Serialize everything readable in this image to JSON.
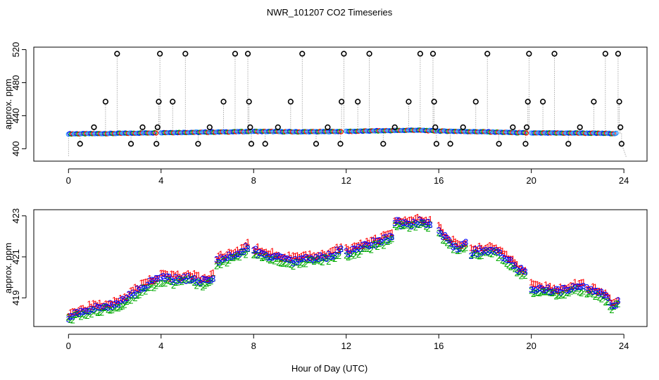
{
  "figure": {
    "title": "NWR_101207  CO2 Timeseries",
    "xlabel": "Hour of Day (UTC)"
  },
  "colors": {
    "axis": "#000000",
    "guide_line": "#999999",
    "outlier_marker": "#000000",
    "level1": "#ff0000",
    "level2": "#00aa00",
    "level3": "#0000ff",
    "series_fill": "#1e90ff"
  },
  "chart_data": [
    {
      "type": "scatter",
      "name": "top-panel",
      "ylabel": "approx. ppm",
      "xlim": [
        -1.5,
        25
      ],
      "ylim": [
        385,
        523
      ],
      "xticks": [
        0,
        4,
        8,
        12,
        16,
        20,
        24
      ],
      "yticks": [
        400,
        440,
        480,
        520
      ],
      "marker": "open-circle",
      "baseline_profile_hours": [
        0,
        2,
        4,
        6,
        8,
        10,
        12,
        14,
        15,
        16,
        18,
        20,
        22,
        23.5
      ],
      "baseline_profile_ppm": [
        418,
        418.5,
        419.5,
        420,
        421,
        420.5,
        421,
        422,
        422.5,
        421.5,
        420.5,
        419,
        419,
        418.5
      ],
      "baseline_segments": [
        {
          "start": 0.0,
          "end": 3.8
        },
        {
          "start": 4.0,
          "end": 7.9
        },
        {
          "start": 8.0,
          "end": 11.8
        },
        {
          "start": 12.0,
          "end": 15.9
        },
        {
          "start": 16.0,
          "end": 19.8
        },
        {
          "start": 20.0,
          "end": 23.7
        }
      ],
      "spikes": [
        {
          "hour": 0.5,
          "ppm": 406
        },
        {
          "hour": 1.1,
          "ppm": 426
        },
        {
          "hour": 1.6,
          "ppm": 457
        },
        {
          "hour": 2.1,
          "ppm": 515
        },
        {
          "hour": 2.7,
          "ppm": 406
        },
        {
          "hour": 3.2,
          "ppm": 426
        },
        {
          "hour": 3.8,
          "ppm": 406
        },
        {
          "hour": 3.85,
          "ppm": 426
        },
        {
          "hour": 3.9,
          "ppm": 457
        },
        {
          "hour": 3.95,
          "ppm": 515
        },
        {
          "hour": 4.5,
          "ppm": 457
        },
        {
          "hour": 5.05,
          "ppm": 515
        },
        {
          "hour": 5.6,
          "ppm": 406
        },
        {
          "hour": 6.1,
          "ppm": 426
        },
        {
          "hour": 6.7,
          "ppm": 457
        },
        {
          "hour": 7.2,
          "ppm": 515
        },
        {
          "hour": 7.75,
          "ppm": 515
        },
        {
          "hour": 7.8,
          "ppm": 457
        },
        {
          "hour": 7.85,
          "ppm": 426
        },
        {
          "hour": 7.9,
          "ppm": 406
        },
        {
          "hour": 8.5,
          "ppm": 406
        },
        {
          "hour": 9.05,
          "ppm": 426
        },
        {
          "hour": 9.6,
          "ppm": 457
        },
        {
          "hour": 10.1,
          "ppm": 515
        },
        {
          "hour": 10.7,
          "ppm": 406
        },
        {
          "hour": 11.2,
          "ppm": 426
        },
        {
          "hour": 11.75,
          "ppm": 406
        },
        {
          "hour": 11.8,
          "ppm": 457
        },
        {
          "hour": 11.9,
          "ppm": 515
        },
        {
          "hour": 12.5,
          "ppm": 457
        },
        {
          "hour": 13.0,
          "ppm": 515
        },
        {
          "hour": 13.6,
          "ppm": 406
        },
        {
          "hour": 14.1,
          "ppm": 426
        },
        {
          "hour": 14.7,
          "ppm": 457
        },
        {
          "hour": 15.2,
          "ppm": 515
        },
        {
          "hour": 15.75,
          "ppm": 515
        },
        {
          "hour": 15.8,
          "ppm": 457
        },
        {
          "hour": 15.85,
          "ppm": 426
        },
        {
          "hour": 15.9,
          "ppm": 406
        },
        {
          "hour": 16.5,
          "ppm": 406
        },
        {
          "hour": 17.05,
          "ppm": 426
        },
        {
          "hour": 17.6,
          "ppm": 457
        },
        {
          "hour": 18.1,
          "ppm": 515
        },
        {
          "hour": 18.6,
          "ppm": 406
        },
        {
          "hour": 19.2,
          "ppm": 426
        },
        {
          "hour": 19.75,
          "ppm": 406
        },
        {
          "hour": 19.8,
          "ppm": 426
        },
        {
          "hour": 19.85,
          "ppm": 457
        },
        {
          "hour": 19.9,
          "ppm": 515
        },
        {
          "hour": 20.5,
          "ppm": 457
        },
        {
          "hour": 21.0,
          "ppm": 515
        },
        {
          "hour": 21.6,
          "ppm": 406
        },
        {
          "hour": 22.1,
          "ppm": 426
        },
        {
          "hour": 22.7,
          "ppm": 457
        },
        {
          "hour": 23.2,
          "ppm": 515
        },
        {
          "hour": 23.75,
          "ppm": 515
        },
        {
          "hour": 23.8,
          "ppm": 457
        },
        {
          "hour": 23.85,
          "ppm": 426
        },
        {
          "hour": 23.9,
          "ppm": 406
        }
      ]
    },
    {
      "type": "scatter",
      "name": "bottom-panel",
      "ylabel": "approx. ppm",
      "xlim": [
        -1.5,
        25
      ],
      "ylim": [
        417.6,
        423.3
      ],
      "xticks": [
        0,
        4,
        8,
        12,
        16,
        20,
        24
      ],
      "yticks": [
        419,
        421,
        423
      ],
      "marker": "level-digit",
      "series": [
        {
          "name": "1",
          "color": "#ff0000",
          "offset": 0.15
        },
        {
          "name": "2",
          "color": "#00aa00",
          "offset": -0.15
        },
        {
          "name": "3",
          "color": "#0000ff",
          "offset": 0.0
        }
      ],
      "segments": [
        {
          "x": [
            0,
            0.8,
            1.6,
            2.2,
            2.8,
            3.3,
            3.9
          ],
          "y": [
            418.1,
            418.4,
            418.6,
            418.8,
            419.2,
            419.6,
            419.9
          ]
        },
        {
          "x": [
            4.0,
            4.6,
            5.2,
            5.8,
            6.3
          ],
          "y": [
            420.0,
            419.9,
            420.0,
            419.8,
            420.0
          ]
        },
        {
          "x": [
            6.4,
            6.9,
            7.4,
            7.8
          ],
          "y": [
            420.8,
            421.0,
            421.2,
            421.5
          ]
        },
        {
          "x": [
            8.0,
            8.6,
            9.2,
            9.8,
            10.4,
            11.0,
            11.5,
            11.8
          ],
          "y": [
            421.3,
            421.1,
            420.9,
            420.8,
            420.9,
            421.0,
            421.1,
            421.5
          ]
        },
        {
          "x": [
            12.0,
            12.5,
            13.0,
            13.5,
            14.0
          ],
          "y": [
            421.2,
            421.4,
            421.6,
            421.8,
            422.0
          ]
        },
        {
          "x": [
            14.1,
            14.6,
            15.2,
            15.7
          ],
          "y": [
            422.7,
            422.6,
            422.7,
            422.6
          ]
        },
        {
          "x": [
            16.0,
            16.4,
            16.8,
            17.2
          ],
          "y": [
            422.3,
            421.8,
            421.5,
            421.6
          ]
        },
        {
          "x": [
            17.4,
            17.8,
            18.3,
            18.8,
            19.4,
            19.8
          ],
          "y": [
            421.2,
            421.3,
            421.4,
            421.0,
            420.5,
            420.1
          ]
        },
        {
          "x": [
            20.0,
            20.6,
            21.2,
            21.8,
            22.3
          ],
          "y": [
            419.5,
            419.4,
            419.3,
            419.5,
            419.5
          ]
        },
        {
          "x": [
            22.4,
            22.8,
            23.2,
            23.5,
            23.8
          ],
          "y": [
            419.4,
            419.3,
            419.1,
            418.6,
            418.9
          ]
        }
      ]
    }
  ]
}
